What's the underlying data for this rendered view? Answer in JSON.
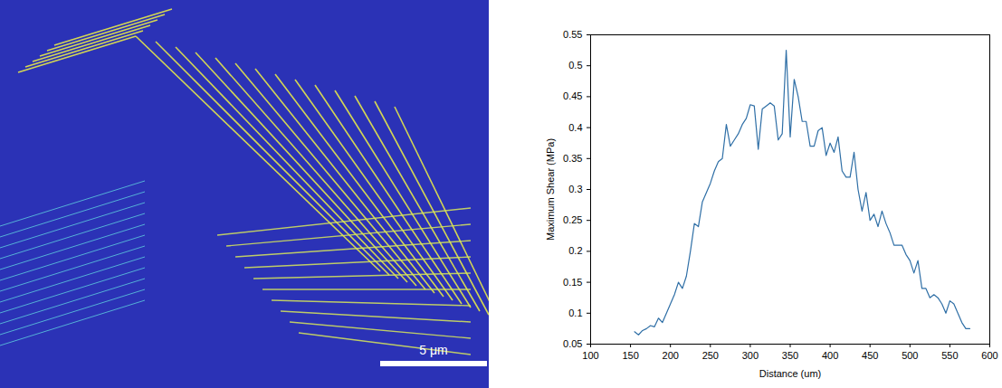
{
  "chart_data": {
    "type": "line",
    "x_label": "Distance (um)",
    "y_label": "Maximum Shear (MPa)",
    "x": [
      155,
      160,
      165,
      170,
      175,
      180,
      185,
      190,
      195,
      200,
      205,
      210,
      215,
      220,
      225,
      230,
      235,
      240,
      245,
      250,
      255,
      260,
      265,
      270,
      275,
      280,
      285,
      290,
      295,
      300,
      305,
      310,
      315,
      320,
      325,
      330,
      335,
      340,
      345,
      350,
      355,
      360,
      365,
      370,
      375,
      380,
      385,
      390,
      395,
      400,
      405,
      410,
      415,
      420,
      425,
      430,
      435,
      440,
      445,
      450,
      455,
      460,
      465,
      470,
      475,
      480,
      485,
      490,
      495,
      500,
      505,
      510,
      515,
      520,
      525,
      530,
      535,
      540,
      545,
      550,
      555,
      560,
      565,
      570,
      575
    ],
    "series": [
      {
        "name": "Maximum Shear",
        "color": "#2f6fa6",
        "values": [
          0.07,
          0.065,
          0.072,
          0.075,
          0.08,
          0.078,
          0.092,
          0.085,
          0.1,
          0.115,
          0.13,
          0.15,
          0.14,
          0.16,
          0.2,
          0.245,
          0.24,
          0.28,
          0.295,
          0.31,
          0.33,
          0.345,
          0.35,
          0.405,
          0.37,
          0.38,
          0.39,
          0.405,
          0.415,
          0.437,
          0.435,
          0.365,
          0.43,
          0.435,
          0.44,
          0.435,
          0.38,
          0.39,
          0.525,
          0.385,
          0.478,
          0.45,
          0.41,
          0.41,
          0.37,
          0.37,
          0.395,
          0.4,
          0.355,
          0.375,
          0.36,
          0.385,
          0.33,
          0.32,
          0.32,
          0.36,
          0.3,
          0.265,
          0.295,
          0.25,
          0.26,
          0.24,
          0.265,
          0.245,
          0.23,
          0.21,
          0.21,
          0.21,
          0.195,
          0.185,
          0.165,
          0.185,
          0.14,
          0.14,
          0.125,
          0.13,
          0.125,
          0.115,
          0.1,
          0.12,
          0.115,
          0.1,
          0.085,
          0.075,
          0.075
        ]
      }
    ],
    "xlim": [
      100,
      600
    ],
    "xticks": [
      100,
      150,
      200,
      250,
      300,
      350,
      400,
      450,
      500,
      550,
      600
    ],
    "ylim": [
      0.05,
      0.55
    ],
    "yticks": [
      0.05,
      0.1,
      0.15,
      0.2,
      0.25,
      0.3,
      0.35,
      0.4,
      0.45,
      0.5,
      0.55
    ],
    "grid": false
  },
  "image": {
    "scale_bar": "5 μm"
  }
}
